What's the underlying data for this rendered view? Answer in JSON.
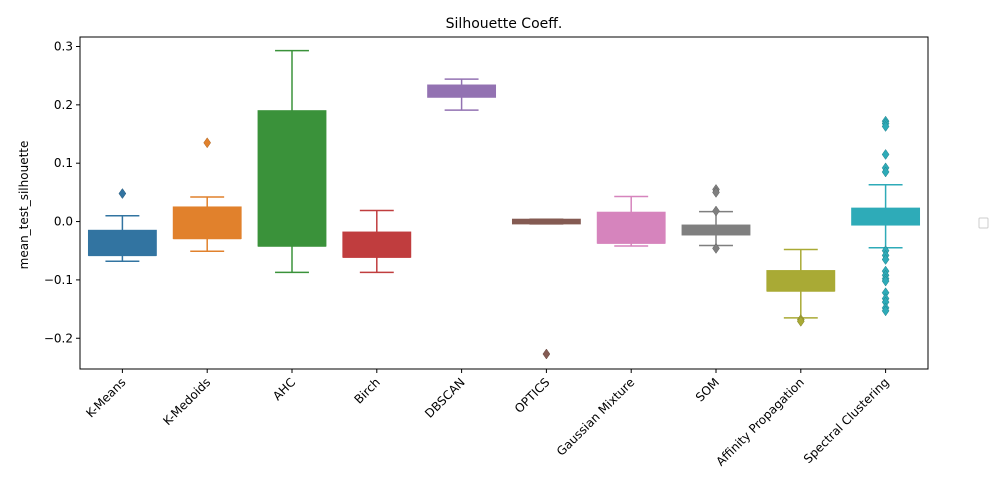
{
  "chart_data": {
    "type": "box",
    "title": "Silhouette Coeff.",
    "xlabel": "",
    "ylabel": "mean_test_silhouette",
    "ylim": [
      -0.255,
      0.31
    ],
    "yticks": [
      -0.2,
      -0.1,
      0.0,
      0.1,
      0.2,
      0.3
    ],
    "ytick_labels": [
      "−0.2",
      "−0.1",
      "0.0",
      "0.1",
      "0.2",
      "0.3"
    ],
    "grid": false,
    "legend": {
      "placement": "right",
      "entries": []
    },
    "categories": [
      "K-Means",
      "K-Medoids",
      "AHC",
      "Birch",
      "DBSCAN",
      "OPTICS",
      "Gaussian Mixture",
      "SOM",
      "Affinity Propagation",
      "Spectral Clustering"
    ],
    "boxes": [
      {
        "name": "K-Means",
        "color": "#3274a1",
        "whisker_low": -0.068,
        "q1": -0.058,
        "median": -0.058,
        "q3": -0.015,
        "whisker_high": 0.01,
        "outliers": [
          0.048
        ]
      },
      {
        "name": "K-Medoids",
        "color": "#e1812c",
        "whisker_low": -0.051,
        "q1": -0.029,
        "median": -0.029,
        "q3": 0.025,
        "whisker_high": 0.042,
        "outliers": [
          0.135
        ]
      },
      {
        "name": "AHC",
        "color": "#3a923a",
        "whisker_low": -0.087,
        "q1": -0.042,
        "median": -0.042,
        "q3": 0.19,
        "whisker_high": 0.293,
        "outliers": []
      },
      {
        "name": "Birch",
        "color": "#c03d3e",
        "whisker_low": -0.087,
        "q1": -0.061,
        "median": -0.061,
        "q3": -0.018,
        "whisker_high": 0.019,
        "outliers": []
      },
      {
        "name": "DBSCAN",
        "color": "#9372b2",
        "whisker_low": 0.191,
        "q1": 0.213,
        "median": 0.223,
        "q3": 0.234,
        "whisker_high": 0.244,
        "outliers": []
      },
      {
        "name": "OPTICS",
        "color": "#845b53",
        "whisker_low": -0.004,
        "q1": -0.004,
        "median": 0.0,
        "q3": 0.004,
        "whisker_high": 0.004,
        "outliers": [
          -0.227
        ]
      },
      {
        "name": "Gaussian Mixture",
        "color": "#d684bd",
        "whisker_low": -0.042,
        "q1": -0.037,
        "median": -0.037,
        "q3": 0.016,
        "whisker_high": 0.043,
        "outliers": []
      },
      {
        "name": "SOM",
        "color": "#7f7f7f",
        "whisker_low": -0.041,
        "q1": -0.023,
        "median": -0.013,
        "q3": -0.006,
        "whisker_high": 0.017,
        "outliers": [
          0.055,
          0.05,
          0.018,
          -0.046
        ]
      },
      {
        "name": "Affinity Propagation",
        "color": "#a9aa35",
        "whisker_low": -0.165,
        "q1": -0.119,
        "median": -0.119,
        "q3": -0.084,
        "whisker_high": -0.048,
        "outliers": [
          -0.168,
          -0.171
        ]
      },
      {
        "name": "Spectral Clustering",
        "color": "#2eabb8",
        "whisker_low": -0.045,
        "q1": -0.006,
        "median": 0.005,
        "q3": 0.023,
        "whisker_high": 0.063,
        "outliers": [
          0.172,
          0.168,
          0.163,
          0.115,
          0.092,
          0.085,
          -0.05,
          -0.058,
          -0.065,
          -0.085,
          -0.092,
          -0.098,
          -0.102,
          -0.122,
          -0.132,
          -0.138,
          -0.148,
          -0.153
        ]
      }
    ]
  }
}
